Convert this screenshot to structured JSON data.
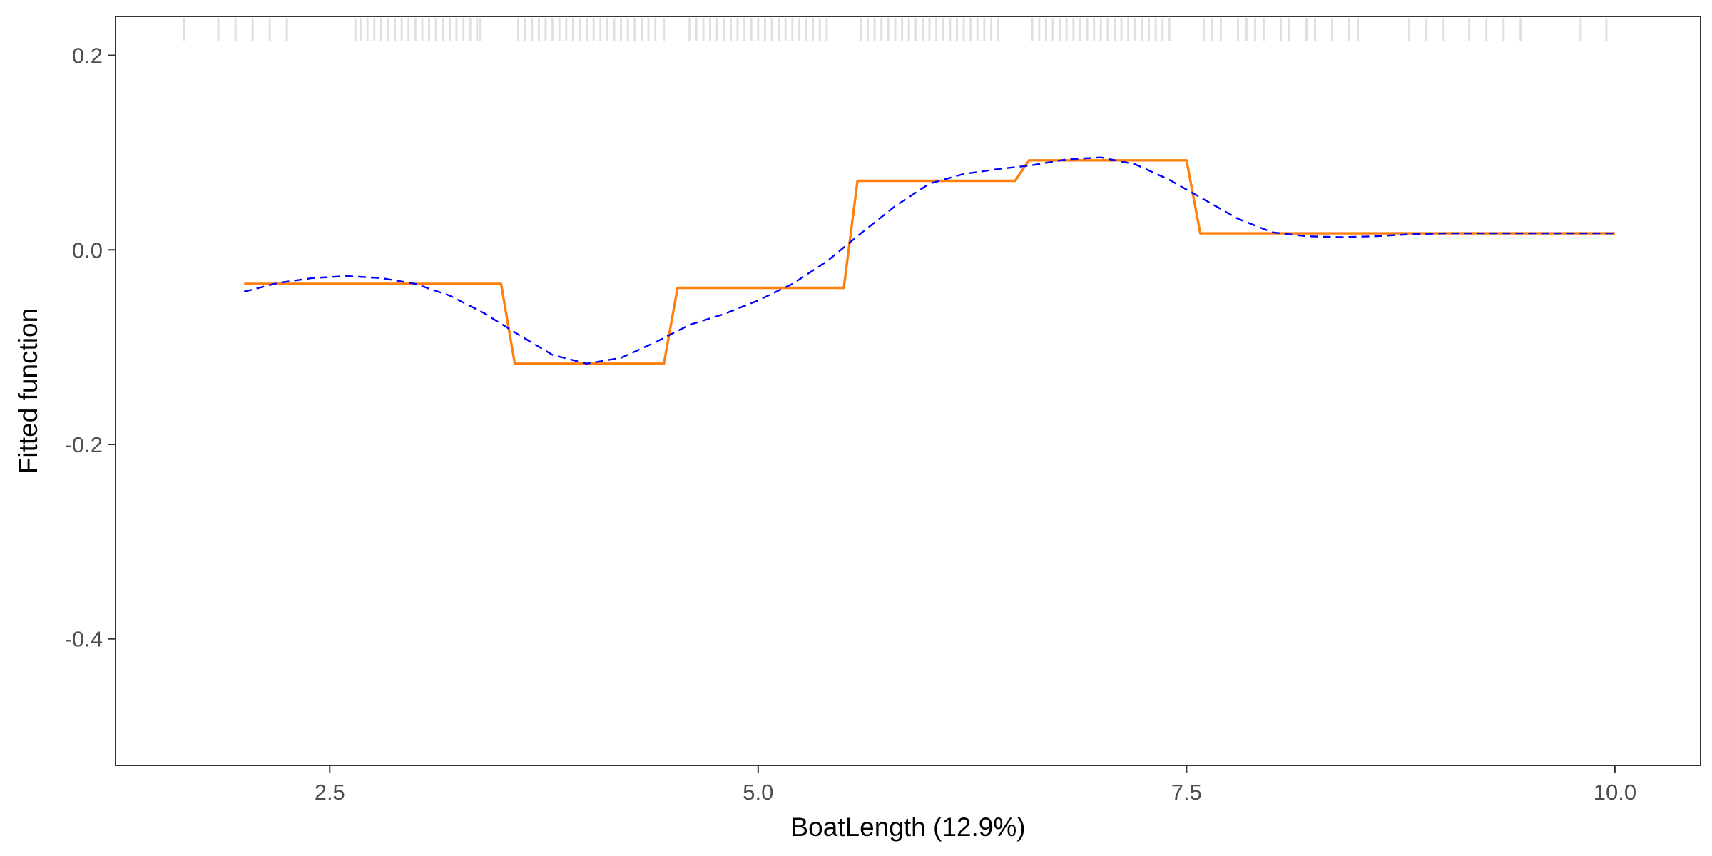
{
  "chart_data": {
    "type": "line",
    "title": "",
    "xlabel": "BoatLength  (12.9%)",
    "ylabel": "Fitted function",
    "xlim": [
      1.25,
      10.5
    ],
    "ylim": [
      -0.53,
      0.24
    ],
    "x_ticks": [
      2.5,
      5.0,
      7.5,
      10.0
    ],
    "x_tick_labels": [
      "2.5",
      "5.0",
      "7.5",
      "10.0"
    ],
    "y_ticks": [
      0.2,
      0.0,
      -0.2,
      -0.4
    ],
    "y_tick_labels": [
      "0.2",
      "0.0",
      "-0.2",
      "-0.4"
    ],
    "grid": false,
    "legend": "none",
    "colors": {
      "step": "#ff7f0e",
      "smooth": "#0000ff",
      "rug": "#e0e0e0",
      "panel_border": "#333333"
    },
    "series": [
      {
        "style": "solid",
        "color": "#ff7f0e",
        "x": [
          2.0,
          3.5,
          3.58,
          4.45,
          4.53,
          5.5,
          5.58,
          6.5,
          6.58,
          7.5,
          7.58,
          10.0
        ],
        "y": [
          -0.035,
          -0.035,
          -0.117,
          -0.117,
          -0.039,
          -0.039,
          0.071,
          0.071,
          0.092,
          0.092,
          0.017,
          0.017
        ]
      },
      {
        "style": "dashed",
        "color": "#0000ff",
        "x": [
          2.0,
          2.2,
          2.4,
          2.6,
          2.8,
          3.0,
          3.2,
          3.4,
          3.6,
          3.8,
          4.0,
          4.2,
          4.4,
          4.6,
          4.8,
          5.0,
          5.2,
          5.4,
          5.6,
          5.8,
          6.0,
          6.2,
          6.4,
          6.6,
          6.8,
          7.0,
          7.2,
          7.4,
          7.6,
          7.8,
          8.0,
          8.2,
          8.4,
          8.6,
          8.8,
          9.0,
          9.5,
          10.0
        ],
        "y": [
          -0.043,
          -0.034,
          -0.029,
          -0.027,
          -0.029,
          -0.035,
          -0.047,
          -0.065,
          -0.087,
          -0.108,
          -0.117,
          -0.111,
          -0.095,
          -0.077,
          -0.066,
          -0.052,
          -0.035,
          -0.012,
          0.017,
          0.045,
          0.068,
          0.078,
          0.083,
          0.087,
          0.093,
          0.095,
          0.088,
          0.072,
          0.052,
          0.032,
          0.018,
          0.014,
          0.013,
          0.014,
          0.016,
          0.017,
          0.017,
          0.017
        ]
      }
    ],
    "rug_x": [
      1.65,
      1.85,
      1.95,
      2.05,
      2.15,
      2.25,
      2.65,
      2.68,
      2.72,
      2.76,
      2.8,
      2.84,
      2.88,
      2.92,
      2.96,
      3.0,
      3.04,
      3.08,
      3.12,
      3.16,
      3.2,
      3.24,
      3.28,
      3.32,
      3.36,
      3.38,
      3.6,
      3.64,
      3.68,
      3.72,
      3.76,
      3.8,
      3.84,
      3.88,
      3.92,
      3.96,
      4.0,
      4.04,
      4.08,
      4.12,
      4.16,
      4.2,
      4.24,
      4.28,
      4.32,
      4.36,
      4.4,
      4.45,
      4.6,
      4.64,
      4.68,
      4.72,
      4.76,
      4.8,
      4.84,
      4.88,
      4.92,
      4.96,
      5.0,
      5.04,
      5.08,
      5.12,
      5.16,
      5.2,
      5.24,
      5.28,
      5.32,
      5.36,
      5.4,
      5.6,
      5.64,
      5.68,
      5.72,
      5.76,
      5.8,
      5.84,
      5.88,
      5.92,
      5.96,
      6.0,
      6.04,
      6.08,
      6.12,
      6.16,
      6.2,
      6.24,
      6.28,
      6.32,
      6.36,
      6.4,
      6.6,
      6.64,
      6.68,
      6.72,
      6.76,
      6.8,
      6.84,
      6.88,
      6.92,
      6.96,
      7.0,
      7.04,
      7.08,
      7.12,
      7.16,
      7.2,
      7.24,
      7.28,
      7.32,
      7.36,
      7.4,
      7.6,
      7.65,
      7.7,
      7.8,
      7.85,
      7.9,
      7.95,
      8.05,
      8.1,
      8.2,
      8.25,
      8.35,
      8.45,
      8.5,
      8.8,
      8.9,
      9.0,
      9.15,
      9.25,
      9.35,
      9.45,
      9.8,
      9.95
    ]
  }
}
